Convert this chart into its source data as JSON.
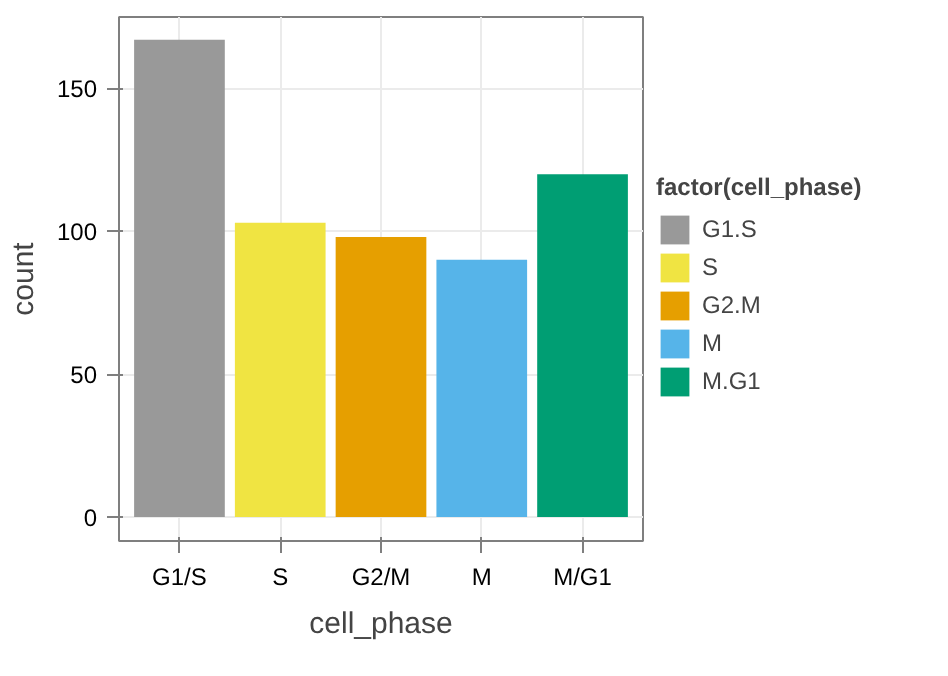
{
  "chart_data": {
    "type": "bar",
    "xlabel": "cell_phase",
    "ylabel": "count",
    "legend_title": "factor(cell_phase)",
    "categories": [
      "G1/S",
      "S",
      "G2/M",
      "M",
      "M/G1"
    ],
    "series": [
      {
        "name": "G1.S",
        "color": "#999999",
        "values": [
          167,
          null,
          null,
          null,
          null
        ]
      },
      {
        "name": "S",
        "color": "#f0e442",
        "values": [
          null,
          103,
          null,
          null,
          null
        ]
      },
      {
        "name": "G2.M",
        "color": "#e69f00",
        "values": [
          null,
          null,
          98,
          null,
          null
        ]
      },
      {
        "name": "M",
        "color": "#56b4e9",
        "values": [
          null,
          null,
          null,
          90,
          null
        ]
      },
      {
        "name": "M.G1",
        "color": "#009e73",
        "values": [
          null,
          null,
          null,
          null,
          120
        ]
      }
    ],
    "ylim": [
      -8.4,
      175
    ],
    "yticks": [
      0,
      50,
      100,
      150
    ],
    "grid": true,
    "legend": "right"
  }
}
